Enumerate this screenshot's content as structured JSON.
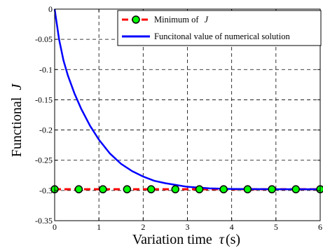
{
  "chart_data": {
    "type": "line",
    "xlabel": "Variation time",
    "xlabel_symbol": "τ",
    "xlabel_unit": "(s)",
    "ylabel": "Functional",
    "ylabel_symbol": "J",
    "xlim": [
      0,
      6
    ],
    "ylim": [
      -0.35,
      0
    ],
    "xticks": [
      0,
      1,
      2,
      3,
      4,
      5,
      6
    ],
    "xtick_labels": [
      "0",
      "1",
      "2",
      "3",
      "4",
      "5",
      "6"
    ],
    "yticks": [
      0,
      -0.05,
      -0.1,
      -0.15,
      -0.2,
      -0.25,
      -0.3,
      -0.35
    ],
    "ytick_labels": [
      "0",
      "-0.05",
      "-0.1",
      "-0.15",
      "-0.2",
      "-0.25",
      "-0.3",
      "-0.35"
    ],
    "grid": true,
    "legend_position": "top-right",
    "series": [
      {
        "name": "Minimum of",
        "name_symbol": "J",
        "style": "dashed-with-circle-markers",
        "line_color": "#ff0000",
        "marker_face": "#00ff00",
        "marker_edge": "#000000",
        "x": [
          0,
          0.545,
          1.09,
          1.636,
          2.18,
          2.727,
          3.27,
          3.818,
          4.36,
          4.909,
          5.45,
          6.0
        ],
        "y": [
          -0.298,
          -0.298,
          -0.298,
          -0.298,
          -0.298,
          -0.298,
          -0.298,
          -0.298,
          -0.298,
          -0.298,
          -0.298,
          -0.298
        ]
      },
      {
        "name": "Funcitonal value of numerical solution",
        "style": "solid",
        "line_color": "#0000ff",
        "x": [
          0,
          0.1,
          0.2,
          0.3,
          0.45,
          0.6,
          0.8,
          1.0,
          1.25,
          1.5,
          1.75,
          2.0,
          2.25,
          2.5,
          3.0,
          3.5,
          4.0,
          5.0,
          6.0
        ],
        "y": [
          0,
          -0.05,
          -0.085,
          -0.11,
          -0.14,
          -0.165,
          -0.193,
          -0.216,
          -0.239,
          -0.256,
          -0.268,
          -0.277,
          -0.284,
          -0.288,
          -0.294,
          -0.2965,
          -0.2975,
          -0.298,
          -0.298
        ]
      }
    ]
  }
}
